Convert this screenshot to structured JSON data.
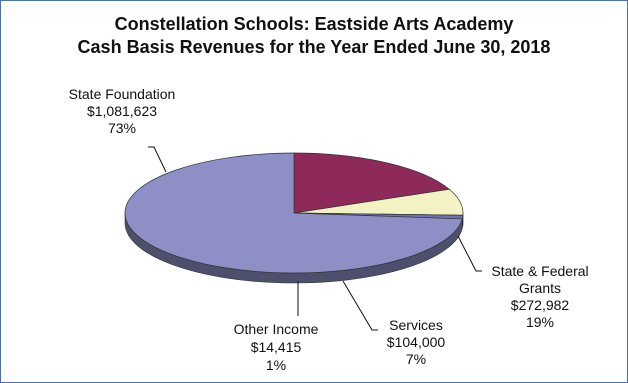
{
  "colors": {
    "frame": "#4a6fb5",
    "series": [
      "#8d8fc6",
      "#8e2a5a",
      "#f2f2c2",
      "#6e72b0"
    ]
  },
  "chart_data": {
    "type": "pie",
    "title": "Constellation Schools: Eastside Arts Academy",
    "subtitle": "Cash Basis Revenues for the Year Ended June 30, 2018",
    "style": "3d",
    "slices": [
      {
        "label": "State Foundation",
        "amount": "$1,081,623",
        "percent": "73%",
        "value": 1081623
      },
      {
        "label_lines": [
          "State & Federal",
          "Grants"
        ],
        "amount": "$272,982",
        "percent": "19%",
        "value": 272982
      },
      {
        "label": "Services",
        "amount": "$104,000",
        "percent": "7%",
        "value": 104000
      },
      {
        "label": "Other Income",
        "amount": "$14,415",
        "percent": "1%",
        "value": 14415
      }
    ]
  }
}
